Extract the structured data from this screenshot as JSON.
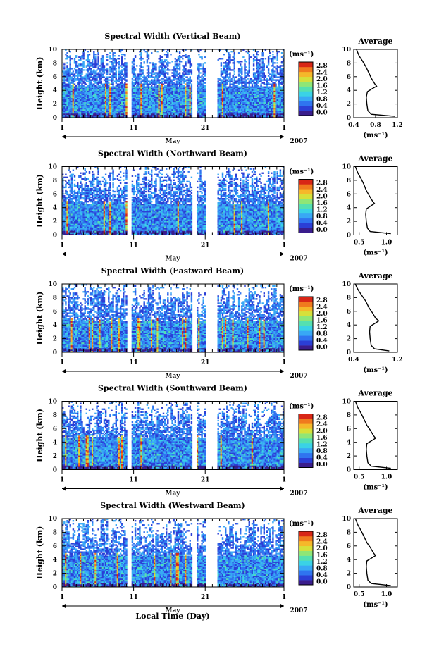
{
  "figure": {
    "xlabel": "Local Time (Day)",
    "month": "May",
    "year": "2007",
    "colorbar_unit": "(ms⁻¹)",
    "colorbar_ticks": [
      "0.0",
      "0.4",
      "0.8",
      "1.2",
      "1.6",
      "2.0",
      "2.4",
      "2.8"
    ],
    "colorscale": [
      "#3a1d8c",
      "#2b3fd6",
      "#2f74f0",
      "#38a8f5",
      "#3ad2e6",
      "#55e0b0",
      "#8fe676",
      "#d6e03a",
      "#f5b82a",
      "#f07a1e",
      "#d82616"
    ],
    "avg_title": "Average",
    "avg_xlabel": "(ms⁻¹)"
  },
  "chart_data": [
    {
      "type": "heatmap",
      "title": "Spectral Width (Vertical Beam)",
      "ylabel": "Height (km)",
      "x_ticks": [
        "1",
        "11",
        "21",
        "1"
      ],
      "y_ticks": [
        "0",
        "2",
        "4",
        "6",
        "8",
        "10"
      ],
      "ylim": [
        0,
        10
      ],
      "xlim": [
        1,
        32
      ],
      "data_gaps_days": [
        [
          10.0,
          10.7
        ],
        [
          19.2,
          19.8
        ],
        [
          21.0,
          22.8
        ]
      ],
      "average_profile": {
        "xlim": [
          0.4,
          1.2
        ],
        "x_ticks": [
          "0.4",
          "0.8",
          "1.2"
        ],
        "x": [
          1.15,
          0.72,
          0.66,
          0.64,
          0.63,
          0.65,
          0.75,
          0.82,
          0.78,
          0.72,
          0.68,
          0.62,
          0.56,
          0.5,
          0.47,
          0.45
        ],
        "y": [
          0.2,
          0.5,
          1.0,
          2.0,
          3.0,
          3.8,
          4.3,
          4.6,
          5.0,
          5.8,
          6.5,
          7.5,
          8.3,
          9.0,
          9.6,
          10.0
        ]
      }
    },
    {
      "type": "heatmap",
      "title": "Spectral Width (Northward Beam)",
      "ylabel": "Height (km)",
      "x_ticks": [
        "1",
        "11",
        "21",
        "1"
      ],
      "y_ticks": [
        "0",
        "2",
        "4",
        "6",
        "8",
        "10"
      ],
      "ylim": [
        0,
        10
      ],
      "xlim": [
        1,
        32
      ],
      "data_gaps_days": [
        [
          10.0,
          10.7
        ],
        [
          19.2,
          19.8
        ],
        [
          21.0,
          22.8
        ]
      ],
      "average_profile": {
        "xlim": [
          0.4,
          1.2
        ],
        "x_ticks": [
          "0.5",
          "1.0"
        ],
        "x": [
          1.08,
          0.7,
          0.65,
          0.63,
          0.62,
          0.63,
          0.72,
          0.78,
          0.74,
          0.68,
          0.63,
          0.58,
          0.53,
          0.48,
          0.45,
          0.43
        ],
        "y": [
          0.2,
          0.5,
          1.0,
          2.0,
          3.0,
          3.8,
          4.3,
          4.6,
          5.0,
          5.8,
          6.5,
          7.5,
          8.3,
          9.0,
          9.6,
          10.0
        ]
      }
    },
    {
      "type": "heatmap",
      "title": "Spectral Width (Eastward Beam)",
      "ylabel": "Height (km)",
      "x_ticks": [
        "1",
        "11",
        "21",
        "1"
      ],
      "y_ticks": [
        "0",
        "2",
        "4",
        "6",
        "8",
        "10"
      ],
      "ylim": [
        0,
        10
      ],
      "xlim": [
        1,
        32
      ],
      "data_gaps_days": [
        [
          10.0,
          10.7
        ],
        [
          19.2,
          19.8
        ],
        [
          21.0,
          22.8
        ]
      ],
      "average_profile": {
        "xlim": [
          0.4,
          1.2
        ],
        "x_ticks": [
          "0.4",
          "1.2"
        ],
        "x": [
          1.05,
          0.78,
          0.72,
          0.7,
          0.69,
          0.7,
          0.8,
          0.86,
          0.8,
          0.74,
          0.68,
          0.62,
          0.55,
          0.49,
          0.45,
          0.43
        ],
        "y": [
          0.2,
          0.5,
          1.0,
          2.0,
          3.0,
          3.8,
          4.3,
          4.6,
          5.0,
          5.8,
          6.5,
          7.5,
          8.3,
          9.0,
          9.6,
          10.0
        ]
      }
    },
    {
      "type": "heatmap",
      "title": "Spectral Width (Southward Beam)",
      "ylabel": "Height (km)",
      "x_ticks": [
        "1",
        "11",
        "21",
        "1"
      ],
      "y_ticks": [
        "0",
        "2",
        "4",
        "6",
        "8",
        "10"
      ],
      "ylim": [
        0,
        10
      ],
      "xlim": [
        1,
        32
      ],
      "data_gaps_days": [
        [
          10.0,
          10.7
        ],
        [
          19.2,
          19.8
        ],
        [
          21.0,
          22.8
        ]
      ],
      "average_profile": {
        "xlim": [
          0.4,
          1.2
        ],
        "x_ticks": [
          "0.5",
          "1.0"
        ],
        "x": [
          1.08,
          0.72,
          0.66,
          0.64,
          0.63,
          0.64,
          0.74,
          0.8,
          0.76,
          0.7,
          0.64,
          0.58,
          0.53,
          0.48,
          0.45,
          0.43
        ],
        "y": [
          0.2,
          0.5,
          1.0,
          2.0,
          3.0,
          3.8,
          4.3,
          4.6,
          5.0,
          5.8,
          6.5,
          7.5,
          8.3,
          9.0,
          9.6,
          10.0
        ]
      }
    },
    {
      "type": "heatmap",
      "title": "Spectral Width (Westward Beam)",
      "ylabel": "Height (km)",
      "x_ticks": [
        "1",
        "11",
        "21",
        "1"
      ],
      "y_ticks": [
        "0",
        "2",
        "4",
        "6",
        "8",
        "10"
      ],
      "ylim": [
        0,
        10
      ],
      "xlim": [
        1,
        32
      ],
      "data_gaps_days": [
        [
          10.0,
          10.7
        ],
        [
          19.2,
          19.8
        ],
        [
          21.0,
          22.8
        ]
      ],
      "average_profile": {
        "xlim": [
          0.4,
          1.2
        ],
        "x_ticks": [
          "0.5",
          "1.0"
        ],
        "x": [
          1.08,
          0.72,
          0.66,
          0.64,
          0.63,
          0.64,
          0.74,
          0.8,
          0.76,
          0.7,
          0.64,
          0.58,
          0.53,
          0.48,
          0.45,
          0.43
        ],
        "y": [
          0.2,
          0.5,
          1.0,
          2.0,
          3.0,
          3.8,
          4.3,
          4.6,
          5.0,
          5.8,
          6.5,
          7.5,
          8.3,
          9.0,
          9.6,
          10.0
        ]
      }
    }
  ]
}
